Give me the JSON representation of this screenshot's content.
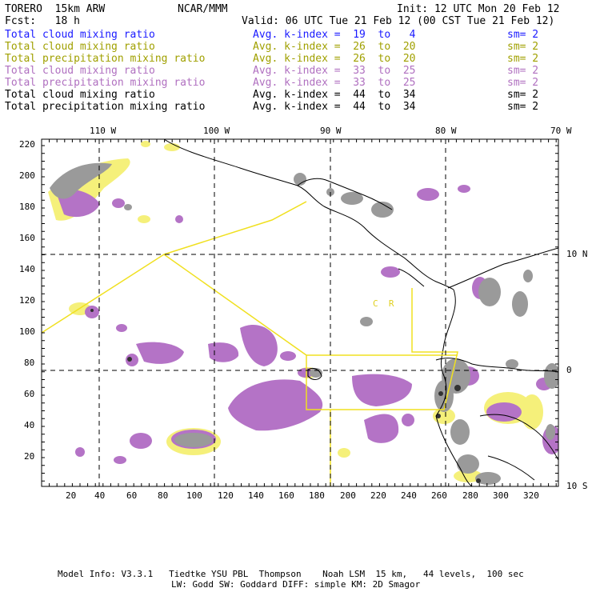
{
  "header": {
    "model": "TORERO  15km ARW",
    "org": "NCAR/MMM",
    "init": "Init: 12 UTC Mon 20 Feb 12",
    "fcst": "Fcst:   18 h",
    "valid": "Valid: 06 UTC Tue 21 Feb 12 (00 CST Tue 21 Feb 12)"
  },
  "legend": [
    {
      "field": "Total cloud mixing ratio",
      "index": "Avg. k-index =  19  to   4",
      "sm": "sm= 2",
      "color": "#1a1aff"
    },
    {
      "field": "Total cloud mixing ratio",
      "index": "Avg. k-index =  26  to  20",
      "sm": "sm= 2",
      "color": "#a0a000"
    },
    {
      "field": "Total precipitation mixing ratio",
      "index": "Avg. k-index =  26  to  20",
      "sm": "sm= 2",
      "color": "#a0a000"
    },
    {
      "field": "Total cloud mixing ratio",
      "index": "Avg. k-index =  33  to  25",
      "sm": "sm= 2",
      "color": "#b070c0"
    },
    {
      "field": "Total precipitation mixing ratio",
      "index": "Avg. k-index =  33  to  25",
      "sm": "sm= 2",
      "color": "#b070c0"
    },
    {
      "field": "Total cloud mixing ratio",
      "index": "Avg. k-index =  44  to  34",
      "sm": "sm= 2",
      "color": "#000000"
    },
    {
      "field": "Total precipitation mixing ratio",
      "index": "Avg. k-index =  44  to  34",
      "sm": "sm= 2",
      "color": "#000000"
    }
  ],
  "map": {
    "lon_labels": [
      "110 W",
      "100 W",
      "90 W",
      "80 W",
      "70 W"
    ],
    "lat_labels": [
      "10 N",
      "0",
      "10 S"
    ],
    "x_ticks": [
      "20",
      "40",
      "60",
      "80",
      "100",
      "120",
      "140",
      "160",
      "180",
      "200",
      "220",
      "240",
      "260",
      "280",
      "300",
      "320"
    ],
    "y_ticks": [
      "220",
      "200",
      "180",
      "160",
      "140",
      "120",
      "100",
      "80",
      "60",
      "40",
      "20"
    ],
    "labels": [
      "C  R"
    ]
  },
  "footer": {
    "line1": "Model Info: V3.3.1   Tiedtke YSU PBL  Thompson    Noah LSM  15 km,   44 levels,  100 sec",
    "line2": "LW: Godd SW: Goddard DIFF: simple KM: 2D Smagor"
  }
}
